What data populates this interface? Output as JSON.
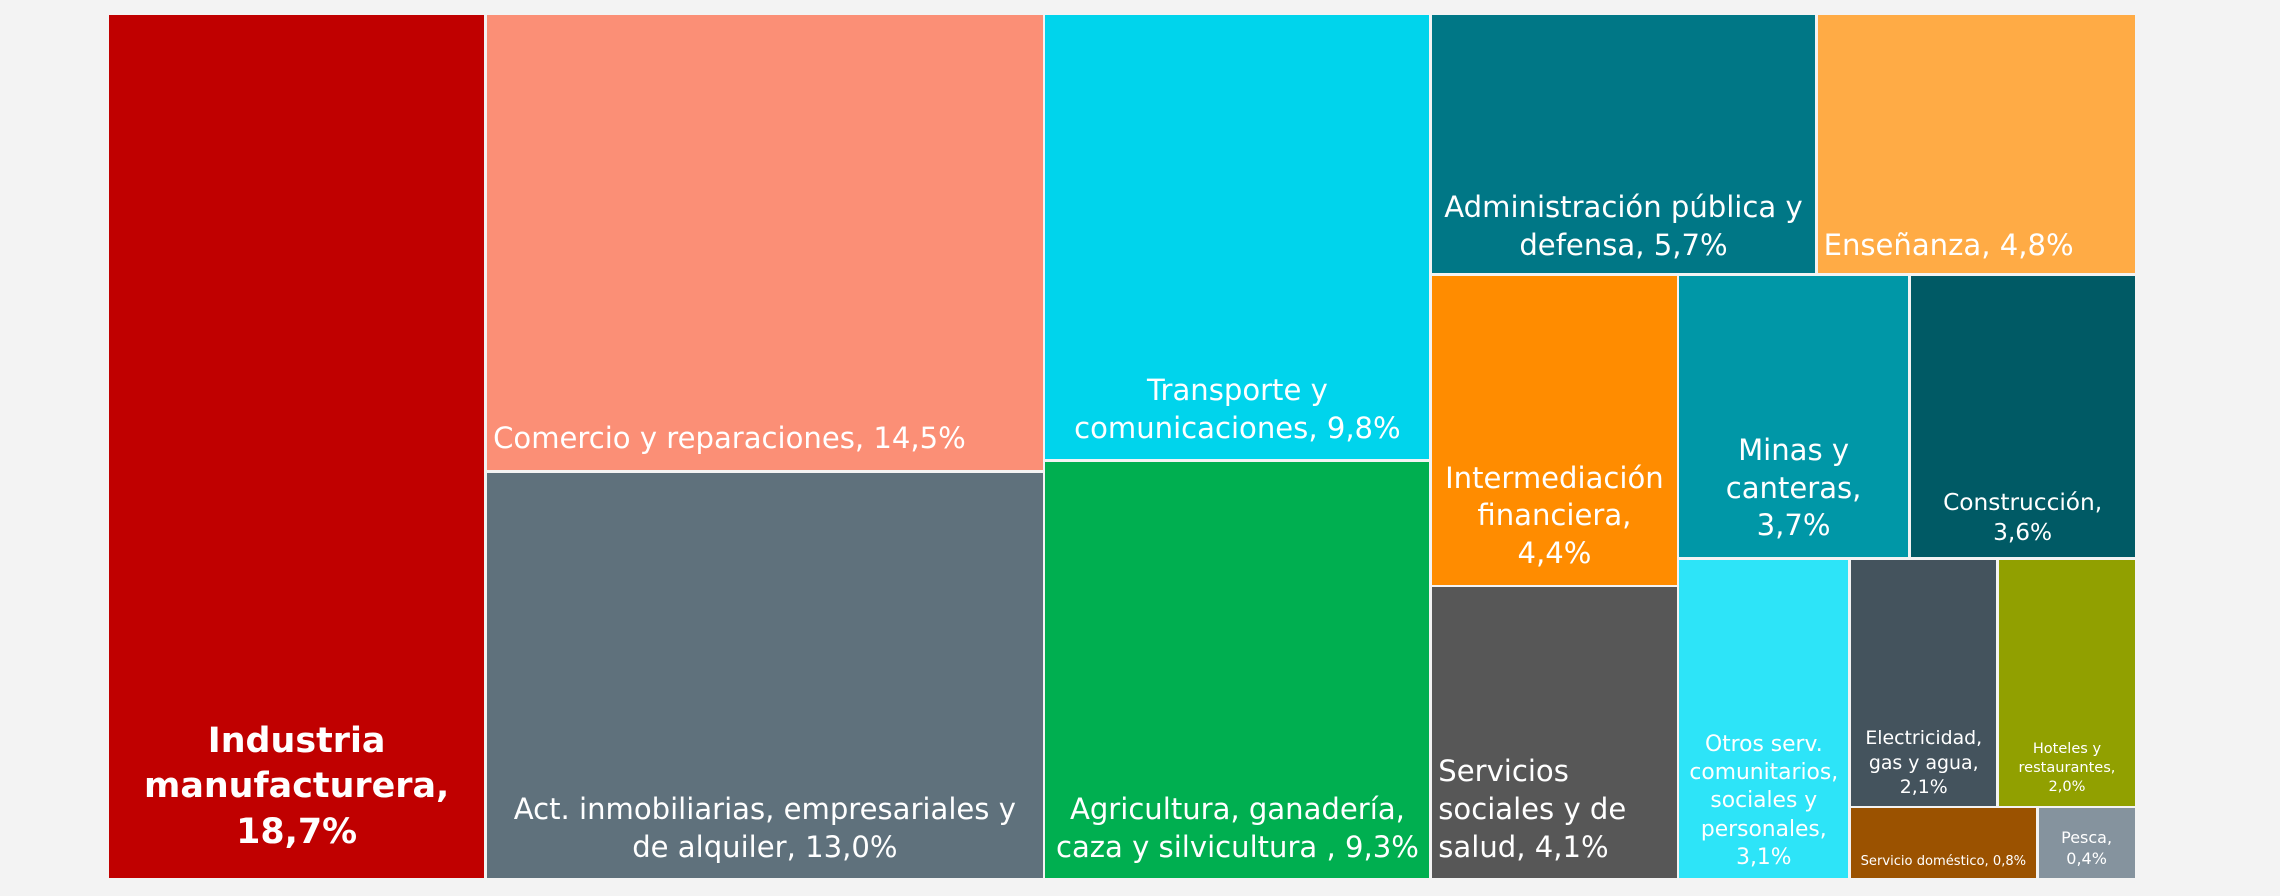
{
  "chart_data": {
    "type": "treemap",
    "categories": [
      "Industria manufacturera,",
      "Comercio y reparaciones,",
      "Act. inmobiliarias, empresariales y de alquiler,",
      "Transporte y comunicaciones,",
      "Agricultura, ganadería, caza y silvicultura ,",
      "Administración pública y defensa,",
      "Enseñanza,",
      "Intermediación financiera,",
      "Servicios sociales y de salud,",
      "Minas y canteras,",
      "Construcción,",
      "Otros serv. comunitarios, sociales y personales,",
      "Electricidad, gas y agua,",
      "Hoteles y restaurantes,",
      "Servicio doméstico,",
      "Pesca,"
    ],
    "values": [
      18.7,
      14.5,
      13.0,
      9.8,
      9.3,
      5.7,
      4.8,
      4.4,
      4.1,
      3.7,
      3.6,
      3.1,
      2.1,
      2.0,
      0.8,
      0.4
    ],
    "value_labels": [
      "18,7%",
      "14,5%",
      "13,0%",
      "9,8%",
      "9,3%",
      "5,7%",
      "4,8%",
      "4,4%",
      "4,1%",
      "3,7%",
      "3,6%",
      "3,1%",
      "2,1%",
      "2,0%",
      "0,8%",
      "0,4%"
    ],
    "colors": [
      "#c00000",
      "#fb8f76",
      "#5f717c",
      "#00d4ec",
      "#00af50",
      "#007786",
      "#ffab45",
      "#ff8c00",
      "#575757",
      "#0097a7",
      "#005a65",
      "#2de4f8",
      "#44535d",
      "#91a000",
      "#9b5200",
      "#85939e"
    ]
  }
}
